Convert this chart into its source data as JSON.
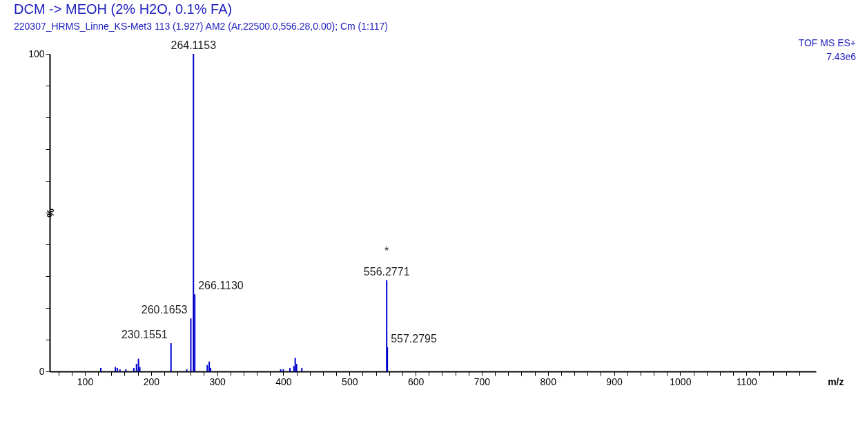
{
  "chart_data": {
    "type": "bar",
    "title": "DCM -> MEOH (2% H2O, 0.1% FA)",
    "subtitle": "220307_HRMS_Linne_KS-Met3 113 (1.927) AM2 (Ar,22500.0,556.28,0.00); Cm (1:117)",
    "xlabel": "m/z",
    "ylabel": "%",
    "x": [
      124,
      146,
      149,
      153,
      162,
      174,
      178,
      181,
      183,
      230.1551,
      254,
      260.1653,
      264.1153,
      266.113,
      285,
      288,
      290,
      396,
      400,
      410,
      416,
      418,
      420,
      428,
      556.2771,
      557.2795
    ],
    "values": [
      1.1,
      1.4,
      1.1,
      0.7,
      0.7,
      1.1,
      2.4,
      4.0,
      1.4,
      8.9,
      0.7,
      16.7,
      100,
      24.3,
      2.0,
      3.1,
      1.1,
      0.7,
      0.7,
      1.1,
      1.7,
      4.3,
      2.4,
      1.1,
      28.7,
      7.6
    ],
    "color": "#0000cc",
    "xlim": [
      52,
      1200
    ],
    "ylim": [
      0,
      100
    ],
    "xticks": [
      {
        "value": 60,
        "label": null
      },
      {
        "value": 80,
        "label": null
      },
      100,
      {
        "value": 120,
        "label": null
      },
      {
        "value": 140,
        "label": null
      },
      {
        "value": 160,
        "label": null
      },
      {
        "value": 180,
        "label": null
      },
      200,
      {
        "value": 220,
        "label": null
      },
      {
        "value": 240,
        "label": null
      },
      {
        "value": 260,
        "label": null
      },
      {
        "value": 280,
        "label": null
      },
      300,
      {
        "value": 320,
        "label": null
      },
      {
        "value": 340,
        "label": null
      },
      {
        "value": 360,
        "label": null
      },
      {
        "value": 380,
        "label": null
      },
      400,
      {
        "value": 420,
        "label": null
      },
      {
        "value": 440,
        "label": null
      },
      {
        "value": 460,
        "label": null
      },
      {
        "value": 480,
        "label": null
      },
      500,
      {
        "value": 520,
        "label": null
      },
      {
        "value": 540,
        "label": null
      },
      {
        "value": 560,
        "label": null
      },
      {
        "value": 580,
        "label": null
      },
      600,
      {
        "value": 620,
        "label": null
      },
      {
        "value": 640,
        "label": null
      },
      {
        "value": 660,
        "label": null
      },
      {
        "value": 680,
        "label": null
      },
      700,
      {
        "value": 720,
        "label": null
      },
      {
        "value": 740,
        "label": null
      },
      {
        "value": 760,
        "label": null
      },
      {
        "value": 780,
        "label": null
      },
      800,
      {
        "value": 820,
        "label": null
      },
      {
        "value": 840,
        "label": null
      },
      {
        "value": 860,
        "label": null
      },
      {
        "value": 880,
        "label": null
      },
      900,
      {
        "value": 920,
        "label": null
      },
      {
        "value": 940,
        "label": null
      },
      {
        "value": 960,
        "label": null
      },
      {
        "value": 980,
        "label": null
      },
      1000,
      {
        "value": 1020,
        "label": null
      },
      {
        "value": 1040,
        "label": null
      },
      {
        "value": 1060,
        "label": null
      },
      {
        "value": 1080,
        "label": null
      },
      1100,
      {
        "value": 1120,
        "label": null
      },
      {
        "value": 1140,
        "label": null
      },
      {
        "value": 1160,
        "label": null
      },
      {
        "value": 1180,
        "label": null
      }
    ],
    "yticks": [
      0,
      {
        "value": 10,
        "label": null
      },
      {
        "value": 20,
        "label": null
      },
      {
        "value": 30,
        "label": null
      },
      {
        "value": 40,
        "label": null
      },
      {
        "value": 50,
        "label": null
      },
      {
        "value": 60,
        "label": null
      },
      {
        "value": 70,
        "label": null
      },
      {
        "value": 80,
        "label": null
      },
      {
        "value": 90,
        "label": null
      },
      100
    ],
    "grid": false,
    "annotations": [
      "TOF MS ES+",
      "7.43e6",
      {
        "text": "264.1153",
        "x": 264.1153,
        "y": 100
      },
      {
        "text": "266.1130",
        "x": 266.113,
        "y": 24.3
      },
      {
        "text": "260.1653",
        "x": 260.1653,
        "y": 16.7
      },
      {
        "text": "230.1551",
        "x": 230.1551,
        "y": 8.9
      },
      {
        "text": "*\n556.2771",
        "x": 556.2771,
        "y": 28.7
      },
      {
        "text": "557.2795",
        "x": 557.2795,
        "y": 7.6
      }
    ]
  }
}
